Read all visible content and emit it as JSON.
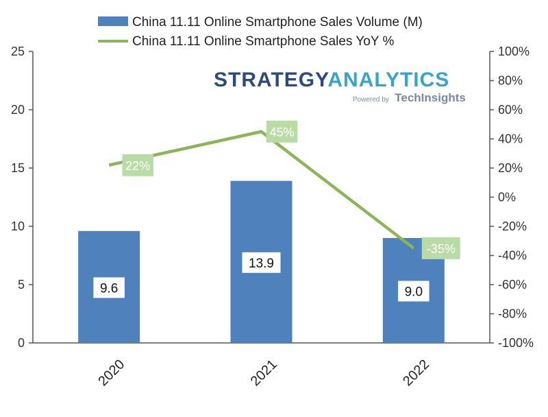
{
  "chart_data": {
    "type": "bar",
    "categories": [
      "2020",
      "2021",
      "2022"
    ],
    "series": [
      {
        "name": "China 11.11 Online Smartphone Sales Volume (M)",
        "type": "bar",
        "axis": "left",
        "values": [
          9.6,
          13.9,
          9.0
        ],
        "data_labels": [
          "9.6",
          "13.9",
          "9.0"
        ],
        "color": "#4f81bd"
      },
      {
        "name": "China 11.11 Online Smartphone Sales YoY %",
        "type": "line",
        "axis": "right",
        "values": [
          22,
          45,
          -35
        ],
        "data_labels": [
          "22%",
          "45%",
          "-35%"
        ],
        "color": "#8cb45a"
      }
    ],
    "y_left": {
      "ylim": [
        0,
        25
      ],
      "ticks": [
        "0",
        "5",
        "10",
        "15",
        "20",
        "25"
      ]
    },
    "y_right": {
      "ylim": [
        -100,
        100
      ],
      "ticks": [
        "-100%",
        "-80%",
        "-60%",
        "-40%",
        "-20%",
        "0%",
        "20%",
        "40%",
        "60%",
        "80%",
        "100%"
      ]
    },
    "legend_position": "top",
    "grid": false,
    "label_box_color": "#b9dca7"
  },
  "branding": {
    "logo_word1": "STRATEGY",
    "logo_word2": "ANALYTICS",
    "powered_by": "Powered by",
    "powered_brand": "TechInsights",
    "color_word1": "#2e4a7a",
    "color_word2": "#3aa3c9"
  }
}
